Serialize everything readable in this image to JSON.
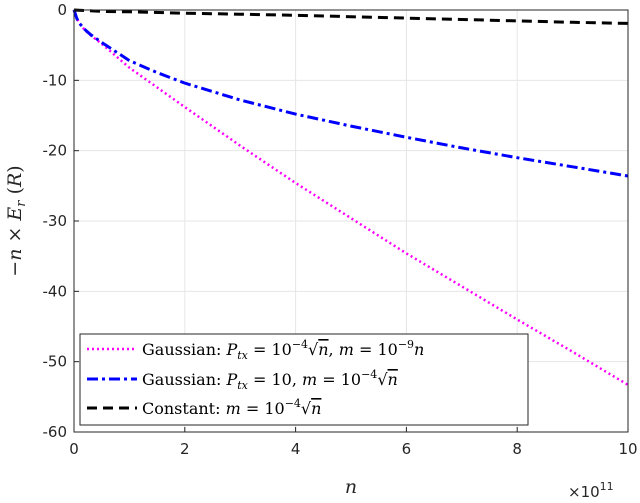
{
  "chart_data": {
    "type": "line",
    "xlabel": "n",
    "ylabel": "−n × E_r (R)",
    "x_multiplier": "×10^11",
    "xlim": [
      0,
      10
    ],
    "ylim": [
      -60,
      0
    ],
    "xticks": [
      0,
      2,
      4,
      6,
      8,
      10
    ],
    "xtick_labels": [
      "0",
      "2",
      "4",
      "6",
      "8",
      "10"
    ],
    "yticks": [
      0,
      -10,
      -20,
      -30,
      -40,
      -50,
      -60
    ],
    "ytick_labels": [
      "0",
      "-10",
      "-20",
      "-30",
      "-40",
      "-50",
      "-60"
    ],
    "grid": true,
    "legend_position": "bottom-left",
    "series": [
      {
        "name": "Gaussian: P_tx = 10^-4 √n, m = 10^-9 n",
        "color": "#ff00ff",
        "style": "dotted",
        "x": [
          0,
          0.05,
          0.1,
          0.2,
          0.3,
          0.5,
          1,
          1.5,
          2,
          3,
          4,
          5,
          6,
          7,
          8,
          9,
          10
        ],
        "y": [
          0,
          -1.2,
          -1.9,
          -2.9,
          -3.6,
          -4.8,
          -8.2,
          -11.0,
          -13.8,
          -19.3,
          -24.6,
          -29.6,
          -34.6,
          -39.3,
          -44.0,
          -48.6,
          -53.3
        ]
      },
      {
        "name": "Gaussian: P_tx = 10, m = 10^-4 √n",
        "color": "#0000ff",
        "style": "dashdot",
        "x": [
          0,
          0.05,
          0.1,
          0.2,
          0.3,
          0.5,
          1,
          1.5,
          2,
          3,
          4,
          5,
          6,
          7,
          8,
          9,
          10
        ],
        "y": [
          0,
          -1.2,
          -1.9,
          -2.8,
          -3.5,
          -4.6,
          -7.2,
          -8.9,
          -10.4,
          -12.8,
          -14.8,
          -16.5,
          -18.1,
          -19.6,
          -21.0,
          -22.3,
          -23.6
        ]
      },
      {
        "name": "Constant: m = 10^-4 √n",
        "color": "#000000",
        "style": "dashed",
        "x": [
          0,
          0.5,
          1,
          2,
          3,
          4,
          5,
          6,
          7,
          8,
          9,
          10
        ],
        "y": [
          0,
          -0.2,
          -0.25,
          -0.45,
          -0.6,
          -0.75,
          -0.95,
          -1.15,
          -1.35,
          -1.55,
          -1.75,
          -1.9
        ]
      }
    ]
  }
}
